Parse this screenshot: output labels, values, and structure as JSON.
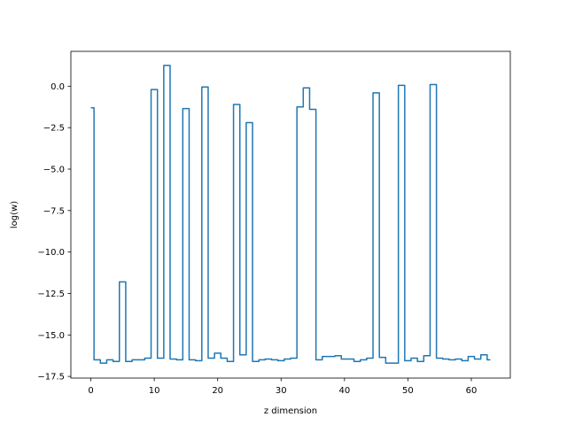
{
  "chart_data": {
    "type": "line",
    "drawstyle": "steps-mid",
    "title": "",
    "xlabel": "z dimension",
    "ylabel": "log(w)",
    "xlim": [
      -3.15,
      66.15
    ],
    "ylim": [
      -17.6,
      2.1
    ],
    "grid": false,
    "x_ticks": [
      0,
      10,
      20,
      30,
      40,
      50,
      60
    ],
    "x_tick_labels": [
      "0",
      "10",
      "20",
      "30",
      "40",
      "50",
      "60"
    ],
    "y_ticks": [
      0.0,
      -2.5,
      -5.0,
      -7.5,
      -10.0,
      -12.5,
      -15.0,
      -17.5
    ],
    "y_tick_labels": [
      "0.0",
      "−2.5",
      "−5.0",
      "−7.5",
      "−10.0",
      "−12.5",
      "−15.0",
      "−17.5"
    ],
    "series": [
      {
        "color": "#1f77b4",
        "x": [
          0,
          1,
          2,
          3,
          4,
          5,
          6,
          7,
          8,
          9,
          10,
          11,
          12,
          13,
          14,
          15,
          16,
          17,
          18,
          19,
          20,
          21,
          22,
          23,
          24,
          25,
          26,
          27,
          28,
          29,
          30,
          31,
          32,
          33,
          34,
          35,
          36,
          37,
          38,
          39,
          40,
          41,
          42,
          43,
          44,
          45,
          46,
          47,
          48,
          49,
          50,
          51,
          52,
          53,
          54,
          55,
          56,
          57,
          58,
          59,
          60,
          61,
          62,
          63
        ],
        "y": [
          -1.3,
          -16.5,
          -16.7,
          -16.5,
          -16.6,
          -11.8,
          -16.6,
          -16.5,
          -16.5,
          -16.4,
          -0.2,
          -16.4,
          1.25,
          -16.45,
          -16.5,
          -1.35,
          -16.5,
          -16.55,
          -0.05,
          -16.4,
          -16.1,
          -16.4,
          -16.6,
          -1.1,
          -16.2,
          -2.2,
          -16.6,
          -16.5,
          -16.45,
          -16.5,
          -16.55,
          -16.45,
          -16.4,
          -1.25,
          -0.1,
          -1.4,
          -16.5,
          -16.3,
          -16.3,
          -16.25,
          -16.45,
          -16.45,
          -16.6,
          -16.5,
          -16.4,
          -0.4,
          -16.35,
          -16.7,
          -16.7,
          0.05,
          -16.55,
          -16.4,
          -16.6,
          -16.25,
          0.1,
          -16.4,
          -16.45,
          -16.5,
          -16.45,
          -16.55,
          -16.3,
          -16.45,
          -16.2,
          -16.5
        ]
      }
    ]
  }
}
